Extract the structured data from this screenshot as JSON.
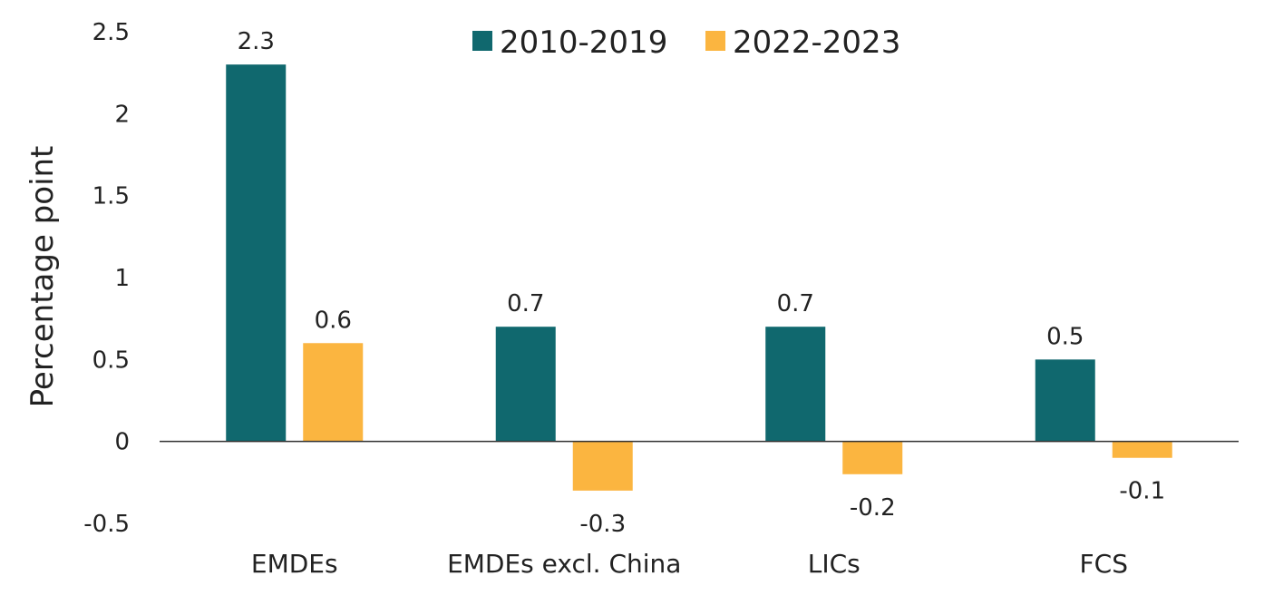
{
  "chart_data": {
    "type": "bar",
    "categories": [
      "EMDEs",
      "EMDEs excl. China",
      "LICs",
      "FCS"
    ],
    "series": [
      {
        "name": "2010-2019",
        "values": [
          2.3,
          0.7,
          0.7,
          0.5
        ],
        "color": "#10686e"
      },
      {
        "name": "2022-2023",
        "values": [
          0.6,
          -0.3,
          -0.2,
          -0.1
        ],
        "color": "#fbb540"
      }
    ],
    "yticks": [
      "2.5",
      "2",
      "1.5",
      "1",
      "0.5",
      "0",
      "-0.5"
    ],
    "ylabel": "Percentage point",
    "ylim": [
      -0.5,
      2.5
    ],
    "legend_position": "top-center",
    "grid": false
  }
}
